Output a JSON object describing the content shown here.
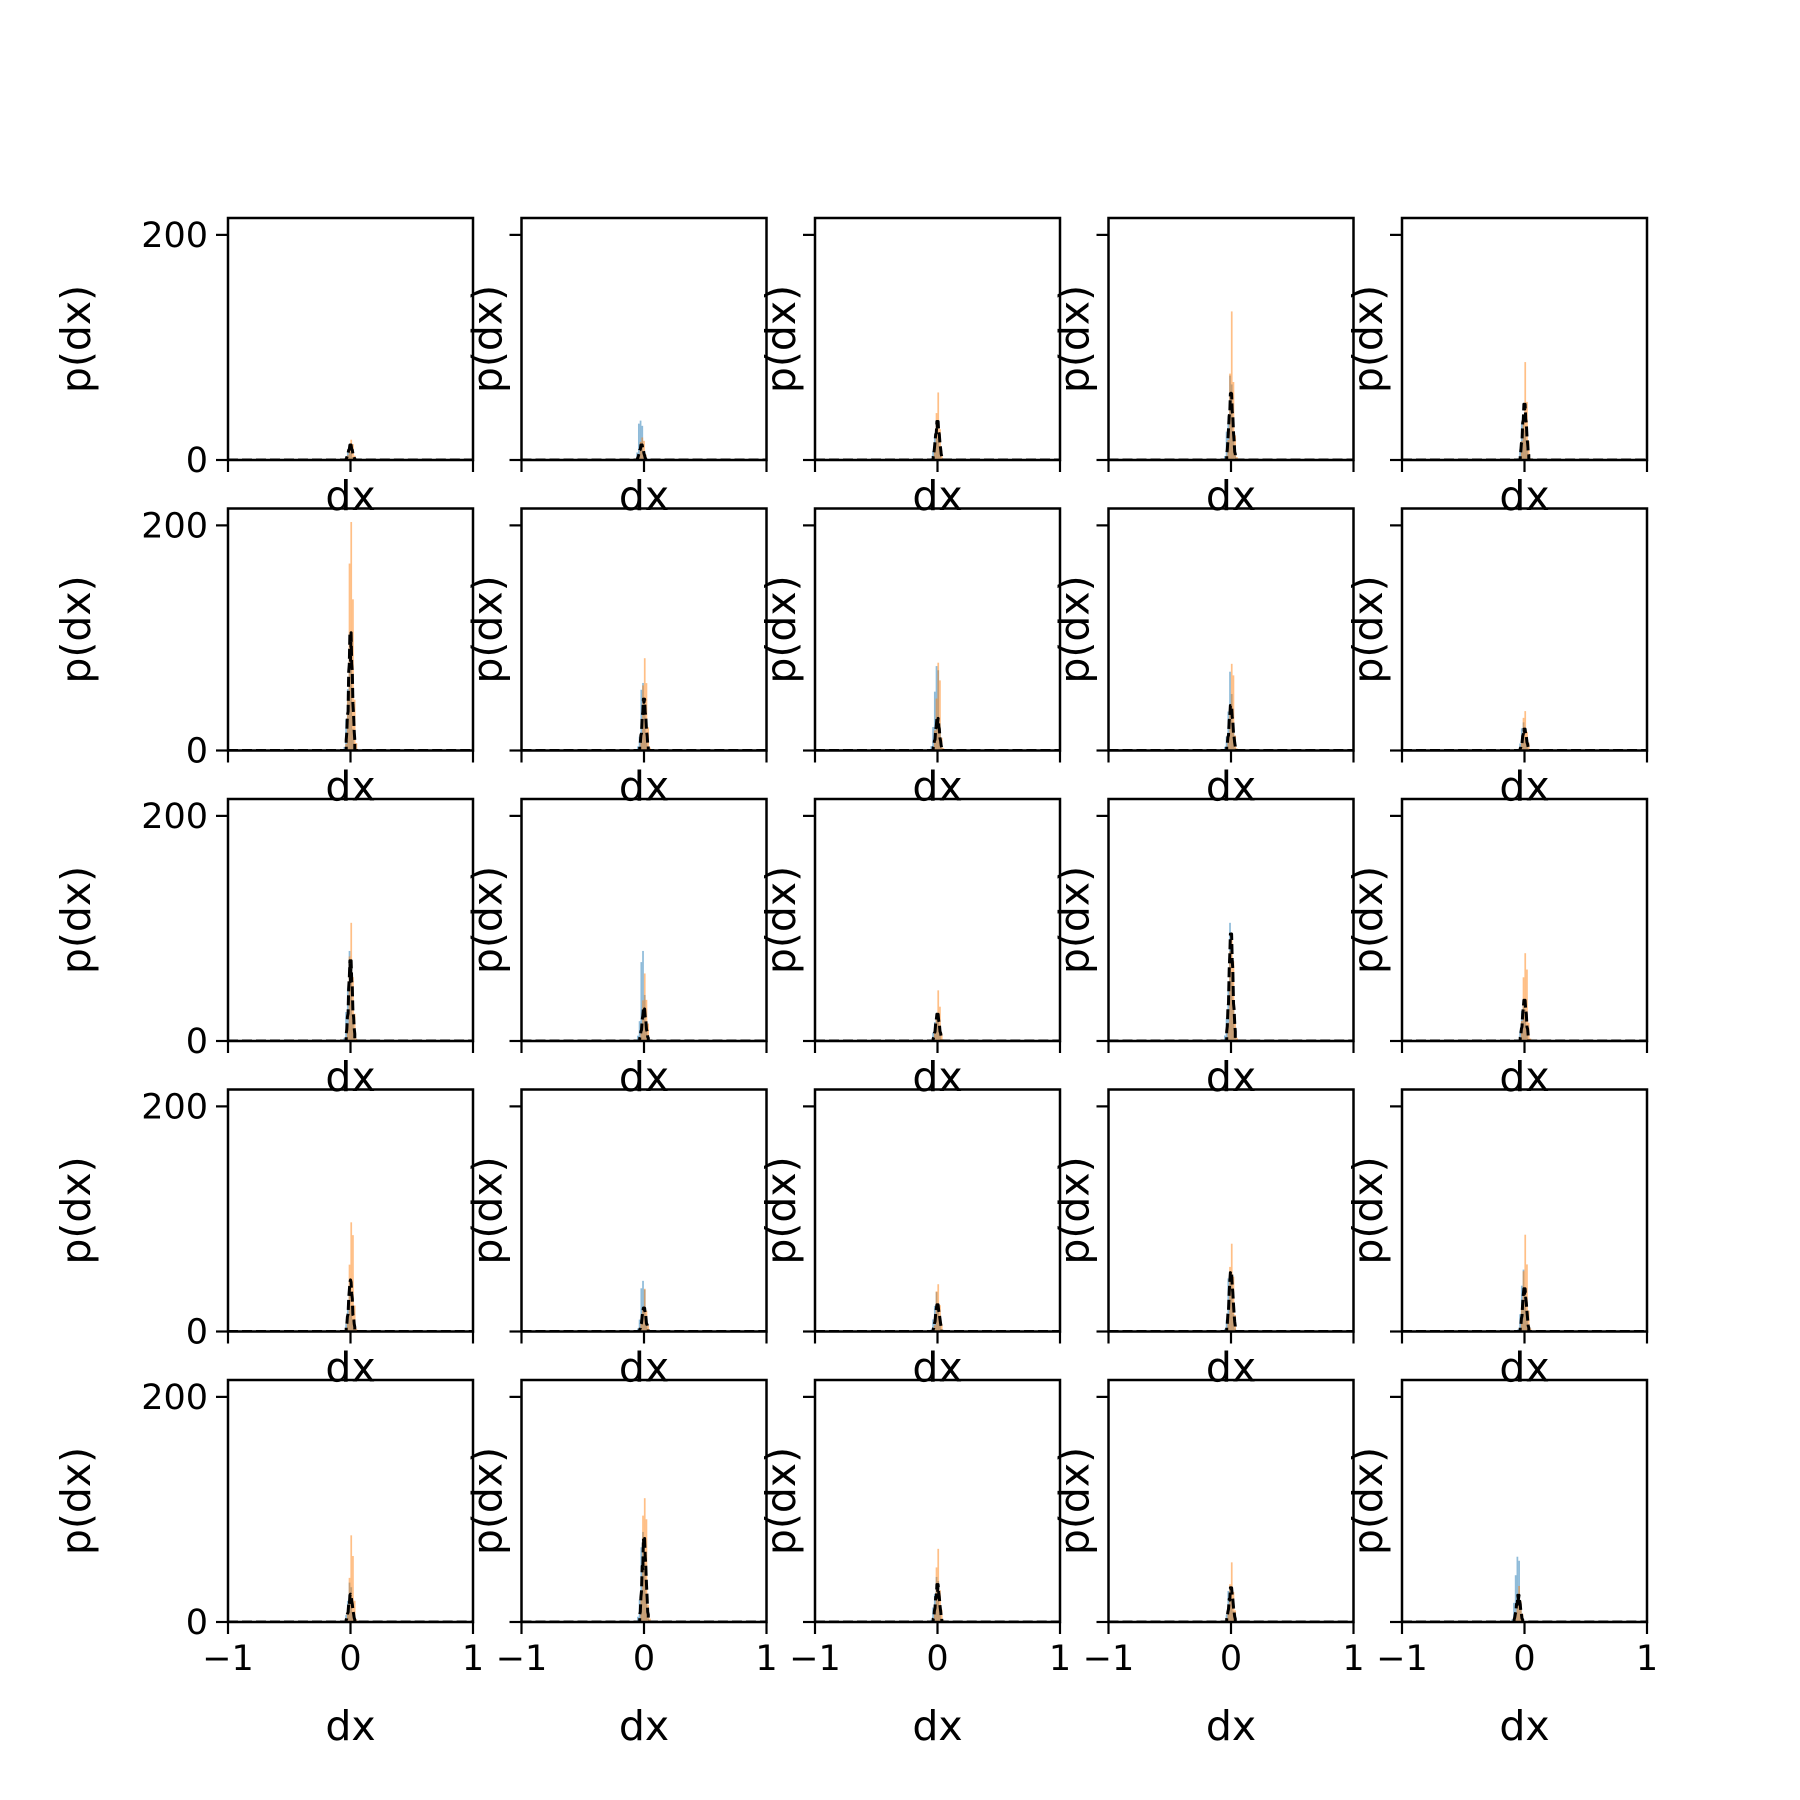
{
  "figure": {
    "colors": {
      "hist_a": "#1f77b4",
      "hist_b": "#ff7f0e",
      "density_line": "#000000",
      "axes": "#000000"
    }
  },
  "chart_data": {
    "type": "histogram-grid",
    "rows": 5,
    "cols": 5,
    "xlabel": "dx",
    "ylabel": "p(dx)",
    "xlim": [
      -1,
      1
    ],
    "ylim": [
      0,
      215
    ],
    "xticks": [
      -1,
      0,
      1
    ],
    "xtick_labels": [
      "−1",
      "0",
      "1"
    ],
    "yticks": [
      0,
      200
    ],
    "ytick_labels": [
      "0",
      "200"
    ],
    "sharex": true,
    "sharey": true,
    "grid": false,
    "series_style": {
      "hist_a": "histogram, semi-transparent blue",
      "hist_b": "histogram, semi-transparent orange",
      "density": "black dashed line"
    },
    "panels": [
      {
        "row": 0,
        "col": 0,
        "peak_x": 0.0,
        "blue_peak": 12,
        "orange_peak": 18,
        "black_peak": 14
      },
      {
        "row": 0,
        "col": 1,
        "peak_x": -0.02,
        "blue_peak": 35,
        "orange_peak": 20,
        "black_peak": 14
      },
      {
        "row": 0,
        "col": 2,
        "peak_x": 0.0,
        "blue_peak": 30,
        "orange_peak": 60,
        "black_peak": 36
      },
      {
        "row": 0,
        "col": 3,
        "peak_x": 0.0,
        "blue_peak": 75,
        "orange_peak": 132,
        "black_peak": 62
      },
      {
        "row": 0,
        "col": 4,
        "peak_x": 0.0,
        "blue_peak": 40,
        "orange_peak": 87,
        "black_peak": 52
      },
      {
        "row": 1,
        "col": 0,
        "peak_x": 0.0,
        "blue_peak": 90,
        "orange_peak": 203,
        "black_peak": 110
      },
      {
        "row": 1,
        "col": 1,
        "peak_x": 0.0,
        "blue_peak": 60,
        "orange_peak": 82,
        "black_peak": 48
      },
      {
        "row": 1,
        "col": 2,
        "peak_x": 0.0,
        "blue_peak": 75,
        "orange_peak": 78,
        "black_peak": 30
      },
      {
        "row": 1,
        "col": 3,
        "peak_x": 0.0,
        "blue_peak": 70,
        "orange_peak": 77,
        "black_peak": 42
      },
      {
        "row": 1,
        "col": 4,
        "peak_x": 0.0,
        "blue_peak": 25,
        "orange_peak": 35,
        "black_peak": 20
      },
      {
        "row": 2,
        "col": 0,
        "peak_x": 0.0,
        "blue_peak": 80,
        "orange_peak": 105,
        "black_peak": 75
      },
      {
        "row": 2,
        "col": 1,
        "peak_x": 0.0,
        "blue_peak": 80,
        "orange_peak": 60,
        "black_peak": 30
      },
      {
        "row": 2,
        "col": 2,
        "peak_x": 0.0,
        "blue_peak": 25,
        "orange_peak": 45,
        "black_peak": 25
      },
      {
        "row": 2,
        "col": 3,
        "peak_x": 0.0,
        "blue_peak": 105,
        "orange_peak": 95,
        "black_peak": 100
      },
      {
        "row": 2,
        "col": 4,
        "peak_x": 0.0,
        "blue_peak": 35,
        "orange_peak": 78,
        "black_peak": 38
      },
      {
        "row": 3,
        "col": 0,
        "peak_x": 0.0,
        "blue_peak": 40,
        "orange_peak": 97,
        "black_peak": 46
      },
      {
        "row": 3,
        "col": 1,
        "peak_x": 0.0,
        "blue_peak": 45,
        "orange_peak": 38,
        "black_peak": 22
      },
      {
        "row": 3,
        "col": 2,
        "peak_x": 0.0,
        "blue_peak": 35,
        "orange_peak": 42,
        "black_peak": 25
      },
      {
        "row": 3,
        "col": 3,
        "peak_x": 0.0,
        "blue_peak": 50,
        "orange_peak": 78,
        "black_peak": 55
      },
      {
        "row": 3,
        "col": 4,
        "peak_x": 0.0,
        "blue_peak": 55,
        "orange_peak": 86,
        "black_peak": 40
      },
      {
        "row": 4,
        "col": 0,
        "peak_x": 0.0,
        "blue_peak": 35,
        "orange_peak": 77,
        "black_peak": 25
      },
      {
        "row": 4,
        "col": 1,
        "peak_x": 0.0,
        "blue_peak": 80,
        "orange_peak": 110,
        "black_peak": 78
      },
      {
        "row": 4,
        "col": 2,
        "peak_x": 0.0,
        "blue_peak": 40,
        "orange_peak": 65,
        "black_peak": 35
      },
      {
        "row": 4,
        "col": 3,
        "peak_x": 0.0,
        "blue_peak": 30,
        "orange_peak": 53,
        "black_peak": 32
      },
      {
        "row": 4,
        "col": 4,
        "peak_x": -0.05,
        "blue_peak": 58,
        "orange_peak": 32,
        "black_peak": 25
      }
    ]
  }
}
